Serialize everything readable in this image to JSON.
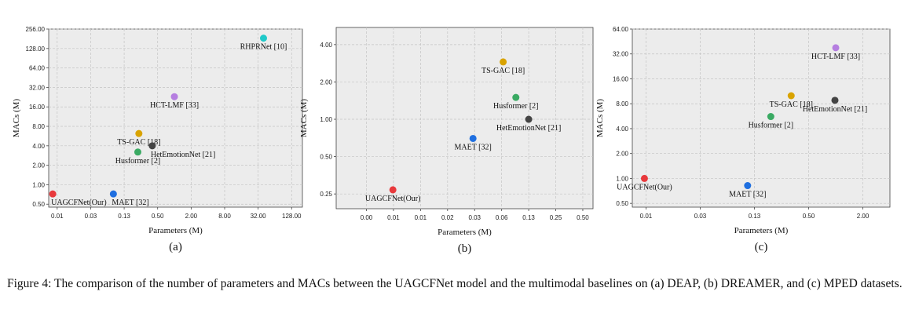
{
  "caption": "Figure 4: The comparison of the number of parameters and MACs between the UAGCFNet model and the multimodal baselines on (a) DEAP, (b) DREAMER, and (c) MPED datasets.",
  "chart_data": [
    {
      "type": "scatter",
      "panel_label": "(a)",
      "xlabel": "Parameters (M)",
      "ylabel": "MACs (M)",
      "x_scale": "log2",
      "y_scale": "log2",
      "grid": true,
      "xlim": [
        0.0055,
        200
      ],
      "ylim": [
        0.45,
        256
      ],
      "x_ticks": [
        "0.01",
        "0.03",
        "0.13",
        "0.50",
        "2.00",
        "8.00",
        "32.00",
        "128.00"
      ],
      "x_tick_values": [
        0.0078125,
        0.03125,
        0.125,
        0.5,
        2,
        8,
        32,
        128
      ],
      "y_ticks": [
        "0.50",
        "1.00",
        "2.00",
        "4.00",
        "8.00",
        "16.00",
        "32.00",
        "64.00",
        "128.00",
        "256.00"
      ],
      "y_tick_values": [
        0.5,
        1,
        2,
        4,
        8,
        16,
        32,
        64,
        128,
        256
      ],
      "points": [
        {
          "label": "UAGCFNet(Our)",
          "x": 0.0065,
          "y": 0.72,
          "color": "#e8393c",
          "label_pos": "below-right"
        },
        {
          "label": "MAET [32]",
          "x": 0.08,
          "y": 0.72,
          "color": "#1f6fe0",
          "label_pos": "below-right"
        },
        {
          "label": "Husformer [2]",
          "x": 0.22,
          "y": 3.2,
          "color": "#3aaa63",
          "label_pos": "below"
        },
        {
          "label": "TS-GAC [18]",
          "x": 0.23,
          "y": 6.2,
          "color": "#d9a300",
          "label_pos": "below"
        },
        {
          "label": "HetEmotionNet [21]",
          "x": 0.4,
          "y": 4.0,
          "color": "#444444",
          "label_pos": "below-right"
        },
        {
          "label": "HCT-LMF [33]",
          "x": 1.0,
          "y": 23,
          "color": "#b57ee0",
          "label_pos": "below"
        },
        {
          "label": "RHPRNet [10]",
          "x": 40,
          "y": 185,
          "color": "#1fc9c9",
          "label_pos": "below"
        }
      ]
    },
    {
      "type": "scatter",
      "panel_label": "(b)",
      "xlabel": "Parameters (M)",
      "ylabel": "MACs (M)",
      "x_scale": "log2",
      "y_scale": "log2",
      "grid": true,
      "xlim": [
        0.0018,
        1.3
      ],
      "ylim": [
        0.19,
        5.5
      ],
      "x_ticks": [
        "0.00",
        "0.01",
        "0.01",
        "0.02",
        "0.03",
        "0.06",
        "0.13",
        "0.25",
        "0.50",
        "1.00"
      ],
      "x_tick_values": [
        0.00390625,
        0.0078125,
        0.015625,
        0.03125,
        0.0625,
        0.125,
        0.25,
        0.5,
        1,
        2
      ],
      "y_ticks": [
        "0.25",
        "0.50",
        "1.00",
        "2.00",
        "4.00"
      ],
      "y_tick_values": [
        0.25,
        0.5,
        1,
        2,
        4
      ],
      "points": [
        {
          "label": "UAGCFNet(Our)",
          "x": 0.0077,
          "y": 0.27,
          "color": "#e8393c",
          "label_pos": "below"
        },
        {
          "label": "MAET [32]",
          "x": 0.06,
          "y": 0.7,
          "color": "#1f6fe0",
          "label_pos": "below"
        },
        {
          "label": "TS-GAC [18]",
          "x": 0.13,
          "y": 2.9,
          "color": "#d9a300",
          "label_pos": "below"
        },
        {
          "label": "Husformer [2]",
          "x": 0.18,
          "y": 1.5,
          "color": "#3aaa63",
          "label_pos": "below"
        },
        {
          "label": "HetEmotionNet [21]",
          "x": 0.25,
          "y": 1.0,
          "color": "#444444",
          "label_pos": "below"
        }
      ]
    },
    {
      "type": "scatter",
      "panel_label": "(c)",
      "xlabel": "Parameters (M)",
      "ylabel": "MACs (M)",
      "x_scale": "log2",
      "y_scale": "log2",
      "grid": true,
      "xlim": [
        0.0055,
        4.0
      ],
      "ylim": [
        0.45,
        64
      ],
      "x_ticks": [
        "0.01",
        "0.03",
        "0.13",
        "0.50",
        "2.00"
      ],
      "x_tick_values": [
        0.0078125,
        0.03125,
        0.125,
        0.5,
        2
      ],
      "y_ticks": [
        "0.50",
        "1.00",
        "2.00",
        "4.00",
        "8.00",
        "16.00",
        "32.00",
        "64.00"
      ],
      "y_tick_values": [
        0.5,
        1,
        2,
        4,
        8,
        16,
        32,
        64
      ],
      "points": [
        {
          "label": "UAGCFNet(Our)",
          "x": 0.0075,
          "y": 1.0,
          "color": "#e8393c",
          "label_pos": "below"
        },
        {
          "label": "MAET [32]",
          "x": 0.105,
          "y": 0.82,
          "color": "#1f6fe0",
          "label_pos": "below"
        },
        {
          "label": "Husformer [2]",
          "x": 0.19,
          "y": 5.6,
          "color": "#3aaa63",
          "label_pos": "below"
        },
        {
          "label": "TS-GAC [18]",
          "x": 0.32,
          "y": 10.0,
          "color": "#d9a300",
          "label_pos": "below"
        },
        {
          "label": "HetEmotionNet [21]",
          "x": 0.98,
          "y": 8.8,
          "color": "#444444",
          "label_pos": "below"
        },
        {
          "label": "HCT-LMF [33]",
          "x": 1.0,
          "y": 38,
          "color": "#b57ee0",
          "label_pos": "below"
        }
      ]
    }
  ]
}
